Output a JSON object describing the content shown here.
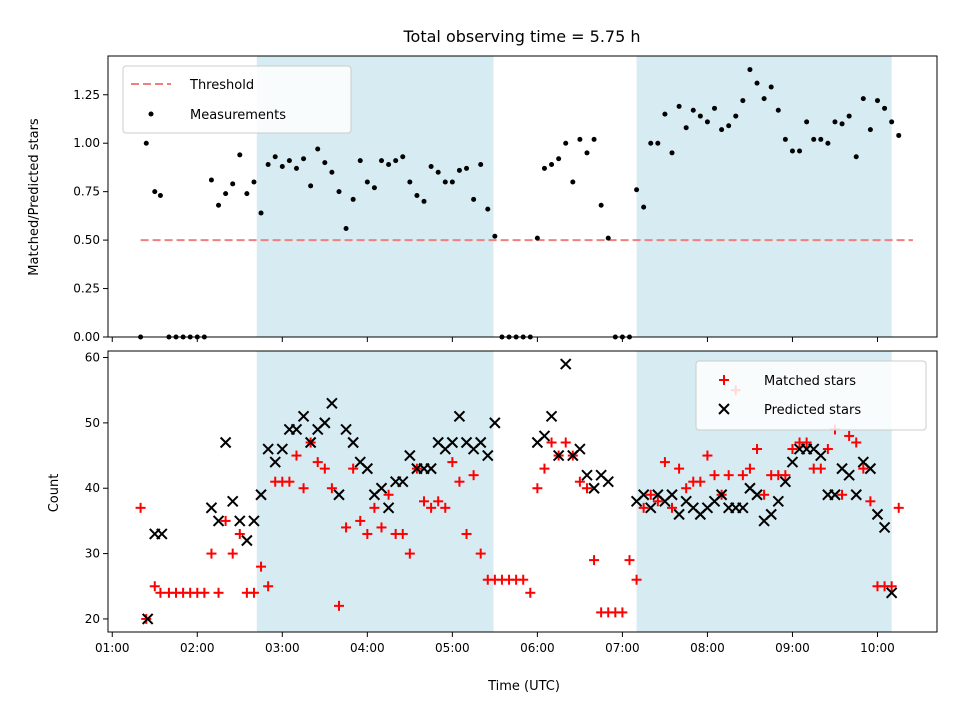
{
  "chart_data": [
    {
      "type": "scatter",
      "title": "Total observing time = 5.75 h",
      "xlabel": "",
      "ylabel": "Matched/Predicted stars",
      "xlim": [
        "00:57",
        "10:42"
      ],
      "ylim": [
        0,
        1.45
      ],
      "xticks": [
        "01:00",
        "02:00",
        "03:00",
        "04:00",
        "05:00",
        "06:00",
        "07:00",
        "08:00",
        "09:00",
        "10:00"
      ],
      "yticks": [
        0,
        0.25,
        0.5,
        0.75,
        1.0,
        1.25
      ],
      "ytick_labels": [
        "0.00",
        "0.25",
        "0.50",
        "0.75",
        "1.00",
        "1.25"
      ],
      "shaded_intervals": [
        [
          "02:42",
          "05:29"
        ],
        [
          "07:10",
          "10:10"
        ]
      ],
      "shade_color": "#add8e6",
      "legend": {
        "placement": "upper-left",
        "entries": [
          "Threshold",
          "Measurements"
        ]
      },
      "threshold": {
        "name": "Threshold",
        "value": 0.5,
        "x": [
          "01:20",
          "10:25"
        ],
        "color": "#f08080",
        "style": "dashed"
      },
      "series": [
        {
          "name": "Measurements",
          "marker": "dot",
          "color": "#000000",
          "x": [
            "01:20",
            "01:24",
            "01:30",
            "01:34",
            "01:40",
            "01:45",
            "01:50",
            "01:55",
            "02:00",
            "02:05",
            "02:10",
            "02:15",
            "02:20",
            "02:25",
            "02:30",
            "02:35",
            "02:40",
            "02:45",
            "02:50",
            "02:55",
            "03:00",
            "03:05",
            "03:10",
            "03:15",
            "03:20",
            "03:25",
            "03:30",
            "03:35",
            "03:40",
            "03:45",
            "03:50",
            "03:55",
            "04:00",
            "04:05",
            "04:10",
            "04:15",
            "04:20",
            "04:25",
            "04:30",
            "04:35",
            "04:40",
            "04:45",
            "04:50",
            "04:55",
            "05:00",
            "05:05",
            "05:10",
            "05:15",
            "05:20",
            "05:25",
            "05:30",
            "05:35",
            "05:40",
            "05:45",
            "05:50",
            "05:55",
            "06:00",
            "06:05",
            "06:10",
            "06:15",
            "06:20",
            "06:25",
            "06:30",
            "06:35",
            "06:40",
            "06:45",
            "06:50",
            "06:55",
            "07:00",
            "07:05",
            "07:10",
            "07:15",
            "07:20",
            "07:25",
            "07:30",
            "07:35",
            "07:40",
            "07:45",
            "07:50",
            "07:55",
            "08:00",
            "08:05",
            "08:10",
            "08:15",
            "08:20",
            "08:25",
            "08:30",
            "08:35",
            "08:40",
            "08:45",
            "08:50",
            "08:55",
            "09:00",
            "09:05",
            "09:10",
            "09:15",
            "09:20",
            "09:25",
            "09:30",
            "09:35",
            "09:40",
            "09:45",
            "09:50",
            "09:55",
            "10:00",
            "10:05",
            "10:10",
            "10:15"
          ],
          "y": [
            0.0,
            1.0,
            0.75,
            0.73,
            0.0,
            0.0,
            0.0,
            0.0,
            0.0,
            0.0,
            0.81,
            0.68,
            0.74,
            0.79,
            0.94,
            0.74,
            0.8,
            0.64,
            0.89,
            0.93,
            0.88,
            0.91,
            0.87,
            0.92,
            0.78,
            0.97,
            0.9,
            0.85,
            0.75,
            0.56,
            0.71,
            0.91,
            0.8,
            0.77,
            0.91,
            0.89,
            0.91,
            0.93,
            0.8,
            0.73,
            0.7,
            0.88,
            0.85,
            0.8,
            0.8,
            0.86,
            0.87,
            0.71,
            0.89,
            0.66,
            0.52,
            0.0,
            0.0,
            0.0,
            0.0,
            0.0,
            0.51,
            0.87,
            0.89,
            0.92,
            1.0,
            0.8,
            1.02,
            0.95,
            1.02,
            0.68,
            0.51,
            0.0,
            0.0,
            0.0,
            0.76,
            0.67,
            1.0,
            1.0,
            1.15,
            0.95,
            1.19,
            1.08,
            1.17,
            1.14,
            1.11,
            1.18,
            1.07,
            1.09,
            1.14,
            1.22,
            1.38,
            1.31,
            1.23,
            1.29,
            1.17,
            1.02,
            0.96,
            0.96,
            1.11,
            1.02,
            1.02,
            1.0,
            1.11,
            1.1,
            1.14,
            0.93,
            1.23,
            1.07,
            1.22,
            1.18,
            1.11,
            1.04
          ]
        }
      ]
    },
    {
      "type": "scatter",
      "title": "",
      "xlabel": "Time (UTC)",
      "ylabel": "Count",
      "xlim": [
        "00:57",
        "10:42"
      ],
      "ylim": [
        18,
        61
      ],
      "xticks": [
        "01:00",
        "02:00",
        "03:00",
        "04:00",
        "05:00",
        "06:00",
        "07:00",
        "08:00",
        "09:00",
        "10:00"
      ],
      "yticks": [
        20,
        30,
        40,
        50,
        60
      ],
      "shaded_intervals": [
        [
          "02:42",
          "05:29"
        ],
        [
          "07:10",
          "10:10"
        ]
      ],
      "shade_color": "#add8e6",
      "legend": {
        "placement": "upper-right",
        "entries": [
          "Matched stars",
          "Predicted stars"
        ]
      },
      "series": [
        {
          "name": "Matched stars",
          "marker": "plus",
          "color": "#ff0000",
          "x": [
            "01:20",
            "01:24",
            "01:30",
            "01:34",
            "01:40",
            "01:45",
            "01:50",
            "01:55",
            "02:00",
            "02:05",
            "02:10",
            "02:15",
            "02:20",
            "02:25",
            "02:30",
            "02:35",
            "02:40",
            "02:45",
            "02:50",
            "02:55",
            "03:00",
            "03:05",
            "03:10",
            "03:15",
            "03:20",
            "03:25",
            "03:30",
            "03:35",
            "03:40",
            "03:45",
            "03:50",
            "03:55",
            "04:00",
            "04:05",
            "04:10",
            "04:15",
            "04:20",
            "04:25",
            "04:30",
            "04:35",
            "04:40",
            "04:45",
            "04:50",
            "04:55",
            "05:00",
            "05:05",
            "05:10",
            "05:15",
            "05:20",
            "05:25",
            "05:30",
            "05:35",
            "05:40",
            "05:45",
            "05:50",
            "05:55",
            "06:00",
            "06:05",
            "06:10",
            "06:15",
            "06:20",
            "06:25",
            "06:30",
            "06:35",
            "06:40",
            "06:45",
            "06:50",
            "06:55",
            "07:00",
            "07:05",
            "07:10",
            "07:15",
            "07:20",
            "07:25",
            "07:30",
            "07:35",
            "07:40",
            "07:45",
            "07:50",
            "07:55",
            "08:00",
            "08:05",
            "08:10",
            "08:15",
            "08:20",
            "08:25",
            "08:30",
            "08:35",
            "08:40",
            "08:45",
            "08:50",
            "08:55",
            "09:00",
            "09:05",
            "09:10",
            "09:15",
            "09:20",
            "09:25",
            "09:30",
            "09:35",
            "09:40",
            "09:45",
            "09:50",
            "09:55",
            "10:00",
            "10:05",
            "10:10",
            "10:15"
          ],
          "y": [
            37,
            20,
            25,
            24,
            24,
            24,
            24,
            24,
            24,
            24,
            30,
            24,
            35,
            30,
            33,
            24,
            24,
            28,
            25,
            41,
            41,
            41,
            45,
            40,
            47,
            44,
            43,
            40,
            22,
            34,
            43,
            35,
            33,
            37,
            34,
            39,
            33,
            33,
            30,
            43,
            38,
            37,
            38,
            37,
            44,
            41,
            33,
            42,
            30,
            26,
            26,
            26,
            26,
            26,
            26,
            24,
            40,
            43,
            47,
            45,
            47,
            45,
            41,
            40,
            29,
            21,
            21,
            21,
            21,
            29,
            26,
            37,
            39,
            38,
            44,
            37,
            43,
            40,
            41,
            41,
            45,
            42,
            39,
            42,
            55,
            42,
            43,
            46,
            39,
            42,
            42,
            42,
            46,
            47,
            47,
            43,
            43,
            46,
            49,
            39,
            48,
            47,
            43,
            38,
            25,
            25,
            25,
            37
          ]
        },
        {
          "name": "Predicted stars",
          "marker": "x",
          "color": "#000000",
          "x": [
            "01:25",
            "01:30",
            "01:35",
            "02:10",
            "02:15",
            "02:20",
            "02:25",
            "02:30",
            "02:35",
            "02:40",
            "02:45",
            "02:50",
            "02:55",
            "03:00",
            "03:05",
            "03:10",
            "03:15",
            "03:20",
            "03:25",
            "03:30",
            "03:35",
            "03:40",
            "03:45",
            "03:50",
            "03:55",
            "04:00",
            "04:05",
            "04:10",
            "04:15",
            "04:20",
            "04:25",
            "04:30",
            "04:35",
            "04:40",
            "04:45",
            "04:50",
            "04:55",
            "05:00",
            "05:05",
            "05:10",
            "05:15",
            "05:20",
            "05:25",
            "05:30",
            "06:00",
            "06:05",
            "06:10",
            "06:15",
            "06:20",
            "06:25",
            "06:30",
            "06:35",
            "06:40",
            "06:45",
            "06:50",
            "07:10",
            "07:15",
            "07:20",
            "07:25",
            "07:30",
            "07:35",
            "07:40",
            "07:45",
            "07:50",
            "07:55",
            "08:00",
            "08:05",
            "08:10",
            "08:15",
            "08:20",
            "08:25",
            "08:30",
            "08:35",
            "08:40",
            "08:45",
            "08:50",
            "08:55",
            "09:00",
            "09:05",
            "09:10",
            "09:15",
            "09:20",
            "09:25",
            "09:30",
            "09:35",
            "09:40",
            "09:45",
            "09:50",
            "09:55",
            "10:00",
            "10:05",
            "10:10"
          ],
          "y": [
            20,
            33,
            33,
            37,
            35,
            47,
            38,
            35,
            32,
            35,
            39,
            46,
            44,
            46,
            49,
            49,
            51,
            47,
            49,
            50,
            53,
            39,
            49,
            47,
            44,
            43,
            39,
            40,
            37,
            41,
            41,
            45,
            43,
            43,
            43,
            47,
            46,
            47,
            51,
            47,
            46,
            47,
            45,
            50,
            47,
            48,
            51,
            45,
            59,
            45,
            46,
            42,
            40,
            42,
            41,
            38,
            39,
            37,
            39,
            38,
            39,
            36,
            38,
            37,
            36,
            37,
            38,
            39,
            37,
            37,
            37,
            40,
            39,
            35,
            36,
            38,
            41,
            44,
            46,
            46,
            46,
            45,
            39,
            39,
            43,
            42,
            39,
            44,
            43,
            36,
            34,
            24
          ]
        }
      ]
    }
  ]
}
